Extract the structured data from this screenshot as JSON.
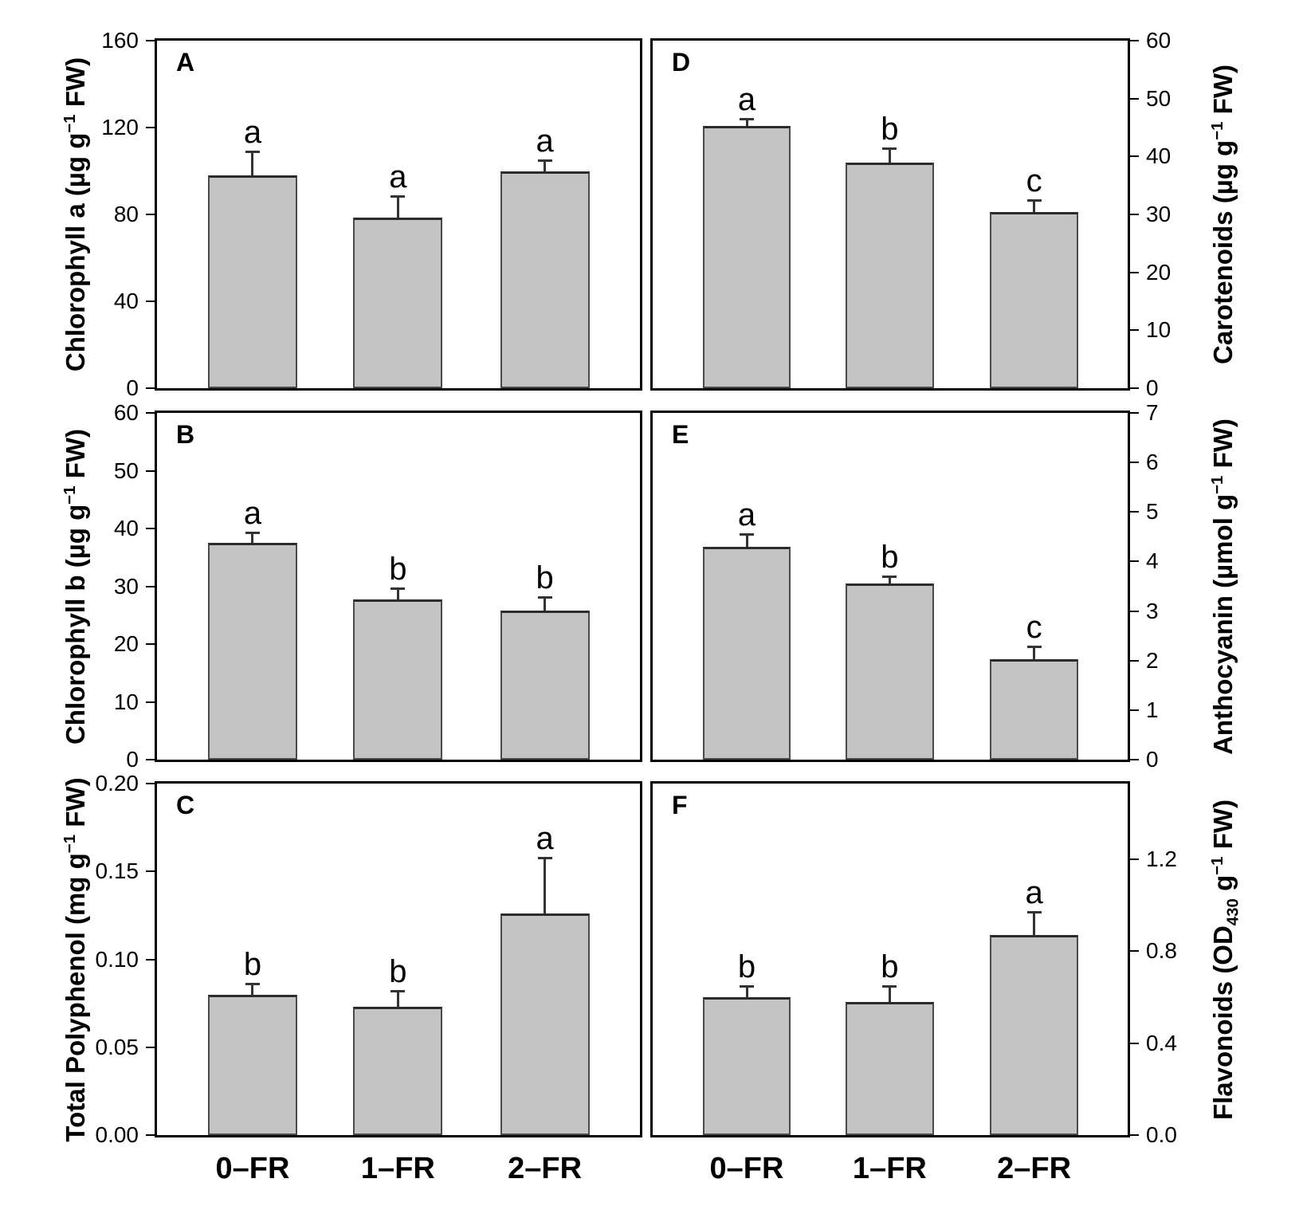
{
  "figure_title": "",
  "colors": {
    "background": "#ffffff",
    "frame": "#000000",
    "bar_fill": "#c4c4c4",
    "bar_border": "#4a4a4a",
    "bar_border_top": "#2b2b2b",
    "error_bar": "#333333",
    "text": "#000000"
  },
  "chart_data": [
    {
      "type": "bar",
      "panel": "A",
      "axis_side": "left",
      "categories": [
        "0–FR",
        "1–FR",
        "2–FR"
      ],
      "values": [
        98,
        78.5,
        100
      ],
      "errors_plus": [
        11,
        10,
        5
      ],
      "sig_letters": [
        "a",
        "a",
        "a"
      ],
      "ylabel": "Chlorophyll a (µg g−1 FW)",
      "ylabel_segments": [
        {
          "text": "Chlorophyll a (µg g",
          "script": "normal"
        },
        {
          "text": "−1",
          "script": "sup"
        },
        {
          "text": " FW)",
          "script": "normal"
        }
      ],
      "ylim": [
        0,
        160
      ],
      "yticks": [
        0,
        40,
        80,
        120,
        160
      ],
      "tick_decimals": 0,
      "grid": false,
      "show_x_tick_labels": false
    },
    {
      "type": "bar",
      "panel": "B",
      "axis_side": "left",
      "categories": [
        "0–FR",
        "1–FR",
        "2–FR"
      ],
      "values": [
        37.5,
        27.7,
        25.8
      ],
      "errors_plus": [
        1.8,
        1.9,
        2.3
      ],
      "sig_letters": [
        "a",
        "b",
        "b"
      ],
      "ylabel": "Chlorophyll b (µg g−1 FW)",
      "ylabel_segments": [
        {
          "text": "Chlorophyll b (µg g",
          "script": "normal"
        },
        {
          "text": "−1",
          "script": "sup"
        },
        {
          "text": " FW)",
          "script": "normal"
        }
      ],
      "ylim": [
        0,
        60
      ],
      "yticks": [
        0,
        10,
        20,
        30,
        40,
        50,
        60
      ],
      "tick_decimals": 0,
      "grid": false,
      "show_x_tick_labels": false
    },
    {
      "type": "bar",
      "panel": "C",
      "axis_side": "left",
      "categories": [
        "0–FR",
        "1–FR",
        "2–FR"
      ],
      "values": [
        0.08,
        0.073,
        0.126
      ],
      "errors_plus": [
        0.006,
        0.009,
        0.032
      ],
      "sig_letters": [
        "b",
        "b",
        "a"
      ],
      "ylabel": "Total Polyphenol (mg g−1 FW)",
      "ylabel_segments": [
        {
          "text": "Total Polyphenol (mg g",
          "script": "normal"
        },
        {
          "text": "−1",
          "script": "sup"
        },
        {
          "text": " FW)",
          "script": "normal"
        }
      ],
      "ylim": [
        0,
        0.2
      ],
      "yticks": [
        0,
        0.05,
        0.1,
        0.15,
        0.2
      ],
      "tick_decimals": 2,
      "grid": false,
      "show_x_tick_labels": true
    },
    {
      "type": "bar",
      "panel": "D",
      "axis_side": "right",
      "categories": [
        "0–FR",
        "1–FR",
        "2–FR"
      ],
      "values": [
        45.3,
        39,
        30.4
      ],
      "errors_plus": [
        1.2,
        2.4,
        2.1
      ],
      "sig_letters": [
        "a",
        "b",
        "c"
      ],
      "ylabel": "Carotenoids (µg g−1 FW)",
      "ylabel_segments": [
        {
          "text": "Carotenoids (µg g",
          "script": "normal"
        },
        {
          "text": "−1",
          "script": "sup"
        },
        {
          "text": " FW)",
          "script": "normal"
        }
      ],
      "ylim": [
        0,
        60
      ],
      "yticks": [
        0,
        10,
        20,
        30,
        40,
        50,
        60
      ],
      "tick_decimals": 0,
      "grid": false,
      "show_x_tick_labels": false
    },
    {
      "type": "bar",
      "panel": "E",
      "axis_side": "right",
      "categories": [
        "0–FR",
        "1–FR",
        "2–FR"
      ],
      "values": [
        4.3,
        3.55,
        2.02
      ],
      "errors_plus": [
        0.25,
        0.15,
        0.27
      ],
      "sig_letters": [
        "a",
        "b",
        "c"
      ],
      "ylabel": "Anthocyanin (µmol g−1 FW)",
      "ylabel_segments": [
        {
          "text": "Anthocyanin (µmol g",
          "script": "normal"
        },
        {
          "text": "−1",
          "script": "sup"
        },
        {
          "text": " FW)",
          "script": "normal"
        }
      ],
      "ylim": [
        0,
        7
      ],
      "yticks": [
        0,
        1,
        2,
        3,
        4,
        5,
        6,
        7
      ],
      "tick_decimals": 0,
      "grid": false,
      "show_x_tick_labels": false
    },
    {
      "type": "bar",
      "panel": "F",
      "axis_side": "right",
      "categories": [
        "0–FR",
        "1–FR",
        "2–FR"
      ],
      "values": [
        0.6,
        0.58,
        0.87
      ],
      "errors_plus": [
        0.05,
        0.07,
        0.1
      ],
      "sig_letters": [
        "b",
        "b",
        "a"
      ],
      "ylabel": "Flavonoids (OD430 g−1 FW)",
      "ylabel_segments": [
        {
          "text": "Flavonoids (OD",
          "script": "normal"
        },
        {
          "text": "430",
          "script": "sub"
        },
        {
          "text": " g",
          "script": "normal"
        },
        {
          "text": "−1",
          "script": "sup"
        },
        {
          "text": " FW)",
          "script": "normal"
        }
      ],
      "ylim": [
        0,
        1.53
      ],
      "yticks": [
        0,
        0.4,
        0.8,
        1.2
      ],
      "tick_decimals": 1,
      "grid": false,
      "show_x_tick_labels": true
    }
  ]
}
